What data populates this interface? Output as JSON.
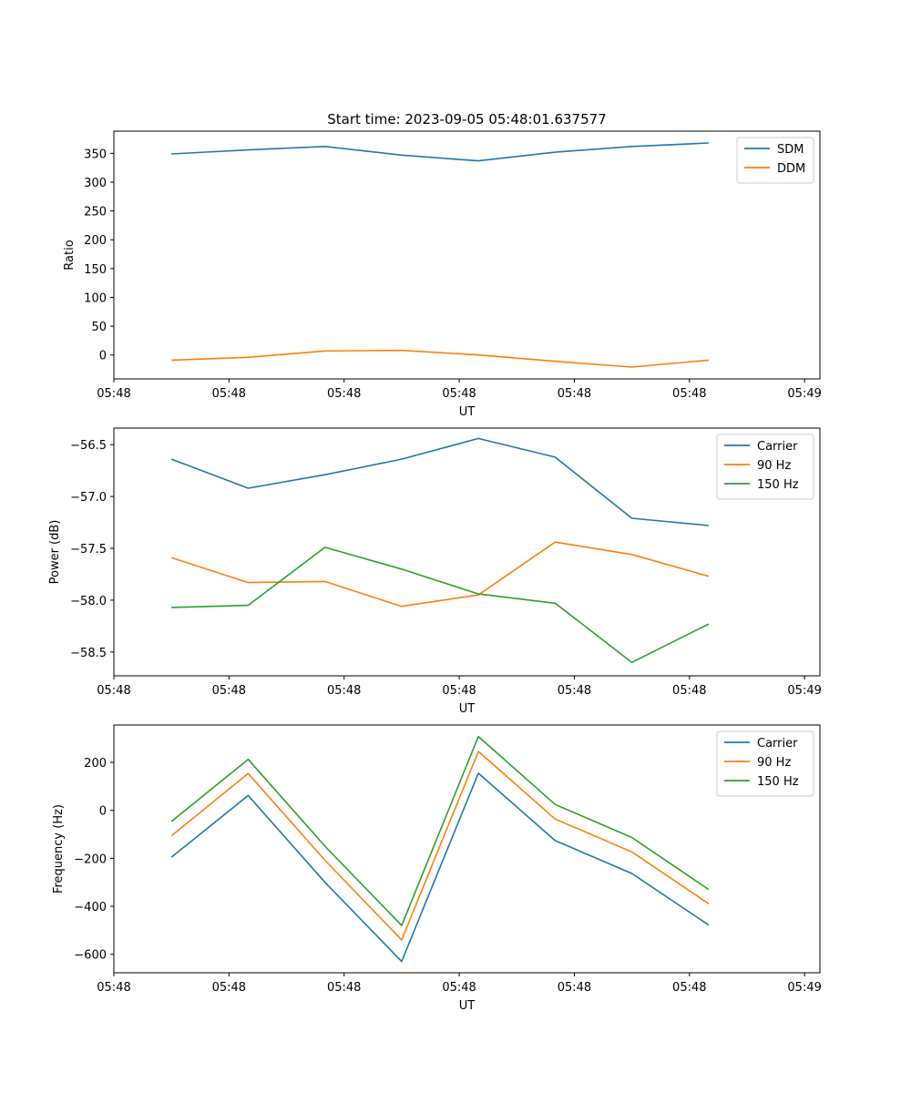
{
  "chart_data": [
    {
      "type": "line",
      "title": "Start time: 2023-09-05 05:48:01.637577",
      "xlabel": "UT",
      "ylabel": "Ratio",
      "x": [
        0,
        1,
        2,
        3,
        4,
        5,
        6,
        7
      ],
      "xlim": [
        -0.75,
        8.45
      ],
      "xticks": [
        -0.75,
        0.75,
        2.25,
        3.75,
        5.25,
        6.75,
        8.25
      ],
      "xtick_labels": [
        "05:48",
        "05:48",
        "05:48",
        "05:48",
        "05:48",
        "05:48",
        "05:49"
      ],
      "ylim": [
        -41.5,
        388.5
      ],
      "yticks": [
        0,
        50,
        100,
        150,
        200,
        250,
        300,
        350
      ],
      "ytick_labels": [
        "0",
        "50",
        "100",
        "150",
        "200",
        "250",
        "300",
        "350"
      ],
      "legend": "top-right",
      "series": [
        {
          "name": "SDM",
          "color": "#1f77b4",
          "values": [
            349,
            356,
            362,
            347,
            337,
            352,
            362,
            368
          ]
        },
        {
          "name": "DDM",
          "color": "#ff7f0e",
          "values": [
            -9,
            -4,
            7,
            8,
            0,
            -11,
            -21,
            -9
          ]
        }
      ]
    },
    {
      "type": "line",
      "title": "",
      "xlabel": "UT",
      "ylabel": "Power (dB)",
      "x": [
        0,
        1,
        2,
        3,
        4,
        5,
        6,
        7
      ],
      "xlim": [
        -0.75,
        8.45
      ],
      "xticks": [
        -0.75,
        0.75,
        2.25,
        3.75,
        5.25,
        6.75,
        8.25
      ],
      "xtick_labels": [
        "05:48",
        "05:48",
        "05:48",
        "05:48",
        "05:48",
        "05:48",
        "05:49"
      ],
      "ylim": [
        -58.73,
        -56.34
      ],
      "yticks": [
        -56.5,
        -57.0,
        -57.5,
        -58.0,
        -58.5
      ],
      "ytick_labels": [
        "−56.5",
        "−57.0",
        "−57.5",
        "−58.0",
        "−58.5"
      ],
      "legend": "top-right",
      "series": [
        {
          "name": "Carrier",
          "color": "#1f77b4",
          "values": [
            -56.64,
            -56.92,
            -56.79,
            -56.64,
            -56.44,
            -56.62,
            -57.21,
            -57.28
          ]
        },
        {
          "name": "90 Hz",
          "color": "#ff7f0e",
          "values": [
            -57.59,
            -57.83,
            -57.82,
            -58.06,
            -57.95,
            -57.44,
            -57.56,
            -57.77
          ]
        },
        {
          "name": "150 Hz",
          "color": "#2ca02c",
          "values": [
            -58.07,
            -58.05,
            -57.49,
            -57.7,
            -57.94,
            -58.03,
            -58.6,
            -58.23
          ]
        }
      ]
    },
    {
      "type": "line",
      "title": "",
      "xlabel": "UT",
      "ylabel": "Frequency (Hz)",
      "x": [
        0,
        1,
        2,
        3,
        4,
        5,
        6,
        7
      ],
      "xlim": [
        -0.75,
        8.45
      ],
      "xticks": [
        -0.75,
        0.75,
        2.25,
        3.75,
        5.25,
        6.75,
        8.25
      ],
      "xtick_labels": [
        "05:48",
        "05:48",
        "05:48",
        "05:48",
        "05:48",
        "05:48",
        "05:49"
      ],
      "ylim": [
        -677,
        356
      ],
      "yticks": [
        200,
        0,
        -200,
        -400,
        -600
      ],
      "ytick_labels": [
        "200",
        "0",
        "−200",
        "−400",
        "−600"
      ],
      "legend": "top-right",
      "series": [
        {
          "name": "Carrier",
          "color": "#1f77b4",
          "values": [
            -195,
            62,
            -300,
            -630,
            155,
            -126,
            -263,
            -478
          ]
        },
        {
          "name": "90 Hz",
          "color": "#ff7f0e",
          "values": [
            -106,
            154,
            -208,
            -540,
            246,
            -36,
            -173,
            -389
          ]
        },
        {
          "name": "150 Hz",
          "color": "#2ca02c",
          "values": [
            -46,
            213,
            -149,
            -480,
            308,
            25,
            -113,
            -330
          ]
        }
      ]
    }
  ]
}
